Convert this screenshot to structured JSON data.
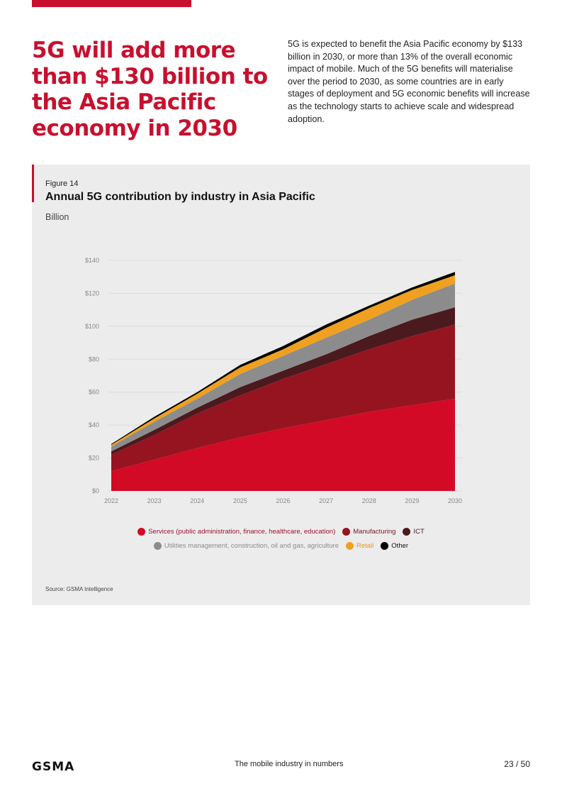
{
  "page": {
    "headline": "5G will add more than $130 billion to the Asia Pacific economy in 2030",
    "intro": "5G is expected to benefit the Asia Pacific economy by $133 billion in 2030, or more than 13% of the overall economic impact of mobile. Much of the 5G benefits will materialise over the period to 2030, as some countries are in early stages of deployment and 5G economic benefits will increase as the technology starts to achieve scale and widespread adoption.",
    "figure_number": "Figure 14",
    "source": "Source: GSMA Intelligence",
    "footer": {
      "logo": "GSMA",
      "text": "The mobile industry in numbers",
      "page": "23 / 50"
    },
    "accent_color": "#c8102e"
  },
  "chart_data": {
    "type": "area",
    "stacked": true,
    "title": "Annual 5G contribution by industry in Asia Pacific",
    "ylabel": "Billion",
    "xlabel": "",
    "ylim": [
      0,
      140
    ],
    "yticks": [
      "$0",
      "$20",
      "$40",
      "$60",
      "$80",
      "$100",
      "$120",
      "$140"
    ],
    "ytick_values": [
      0,
      20,
      40,
      60,
      80,
      100,
      120,
      140
    ],
    "categories": [
      "2022",
      "2023",
      "2024",
      "2025",
      "2026",
      "2027",
      "2028",
      "2029",
      "2030"
    ],
    "grid": true,
    "legend_placement": "bottom",
    "series": [
      {
        "name": "Services (public administration, finance, healthcare, education)",
        "color": "#d20a26",
        "label_color": "#a0102a",
        "values": [
          12,
          19,
          26,
          32.5,
          38,
          43,
          48,
          52,
          56
        ]
      },
      {
        "name": "Manufacturing",
        "color": "#961420",
        "label_color": "#7a1420",
        "values": [
          10,
          15,
          21,
          25.5,
          30,
          34,
          38,
          42,
          45
        ]
      },
      {
        "name": "ICT",
        "color": "#4a1a1e",
        "label_color": "#4a1a1e",
        "values": [
          2,
          3,
          3.5,
          5,
          5,
          6,
          8,
          10,
          10.5
        ]
      },
      {
        "name": "Utilities management, construction, oil and gas, agriculture",
        "color": "#8c8c8c",
        "label_color": "#8c8c8c",
        "values": [
          3,
          5,
          5.5,
          8,
          9,
          10,
          10,
          12,
          14.5
        ]
      },
      {
        "name": "Retail",
        "color": "#f0a020",
        "label_color": "#e69a20",
        "values": [
          1,
          2,
          3,
          4,
          4,
          6,
          7,
          6,
          5
        ]
      },
      {
        "name": "Other",
        "color": "#000000",
        "label_color": "#111111",
        "values": [
          0.5,
          1,
          1,
          1.5,
          2,
          2,
          1.5,
          1.5,
          2
        ]
      }
    ]
  }
}
